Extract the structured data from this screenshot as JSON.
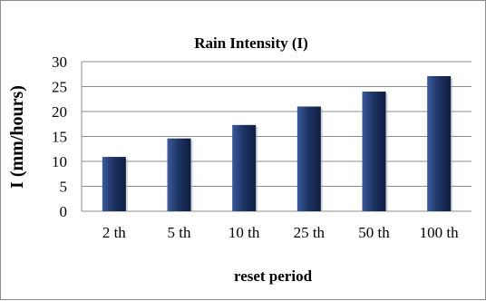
{
  "chart_data": {
    "type": "bar",
    "title": "Rain Intensity (I)",
    "xlabel": "reset period",
    "ylabel": "I  (mm/hours)",
    "categories": [
      "2 th",
      "5 th",
      "10 th",
      "25 th",
      "50 th",
      "100 th"
    ],
    "values": [
      10.9,
      14.6,
      17.3,
      21.0,
      24.0,
      27.1
    ],
    "ylim": [
      0,
      30
    ],
    "yticks": [
      0,
      5,
      10,
      15,
      20,
      25,
      30
    ],
    "grid": true,
    "legend": "none",
    "colors": {
      "bar": "#1f3566",
      "bar_highlight": "#3a5a9c",
      "bar_dark": "#0e1d42",
      "grid": "#8c8c8c",
      "axis": "#8c8c8c"
    }
  }
}
